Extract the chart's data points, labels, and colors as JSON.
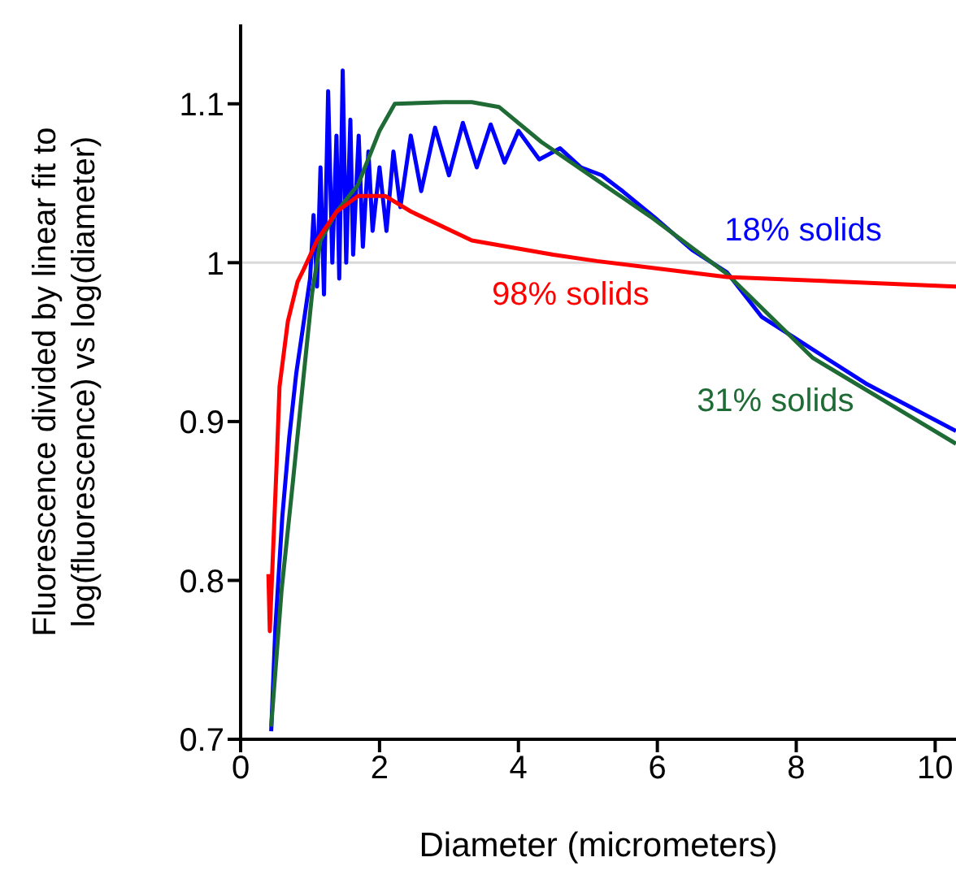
{
  "chart_data": {
    "type": "line",
    "xlabel": "Diameter (micrometers)",
    "ylabel": "Fluorescence divided by linear fit to\nlog(fluorescence) vs log(diameter)",
    "xlim": [
      0,
      10.3
    ],
    "xticks": [
      0,
      2,
      4,
      6,
      8,
      10
    ],
    "ylim": [
      0.7,
      1.15
    ],
    "yticks": [
      0.7,
      0.8,
      0.9,
      1,
      1.1
    ],
    "marker": "none",
    "line_style": "solid",
    "ref_lines": [
      {
        "axis": "y",
        "value": 1,
        "color": "#d9d9d9"
      }
    ],
    "series": [
      {
        "name": "18% solids",
        "color": "#0000ff",
        "x": [
          0.44,
          0.5,
          0.6,
          0.7,
          0.8,
          0.9,
          1.0,
          1.05,
          1.1,
          1.15,
          1.2,
          1.26,
          1.32,
          1.38,
          1.42,
          1.47,
          1.52,
          1.58,
          1.62,
          1.7,
          1.76,
          1.84,
          1.9,
          2.0,
          2.1,
          2.2,
          2.3,
          2.45,
          2.6,
          2.8,
          3.0,
          3.2,
          3.4,
          3.6,
          3.8,
          4.0,
          4.3,
          4.6,
          4.9,
          5.2,
          5.5,
          6.0,
          6.5,
          7.0,
          7.5,
          8.0,
          9.0,
          10.3
        ],
        "values": [
          0.705,
          0.77,
          0.84,
          0.89,
          0.93,
          0.96,
          0.99,
          1.03,
          0.985,
          1.06,
          0.98,
          1.108,
          1.0,
          1.08,
          0.99,
          1.121,
          1.0,
          1.09,
          1.005,
          1.08,
          1.01,
          1.07,
          1.02,
          1.06,
          1.02,
          1.07,
          1.035,
          1.08,
          1.045,
          1.085,
          1.055,
          1.088,
          1.06,
          1.087,
          1.063,
          1.083,
          1.065,
          1.072,
          1.06,
          1.055,
          1.045,
          1.027,
          1.008,
          0.994,
          0.966,
          0.952,
          0.924,
          0.894
        ]
      },
      {
        "name": "31% solids",
        "color": "#1e6b35",
        "x": [
          0.44,
          0.59,
          0.75,
          0.91,
          1.03,
          1.15,
          1.38,
          1.69,
          2.0,
          2.22,
          2.93,
          3.33,
          3.72,
          4.33,
          5.13,
          5.9,
          7.0,
          8.24,
          10.3
        ],
        "values": [
          0.708,
          0.794,
          0.861,
          0.93,
          0.981,
          1.014,
          1.032,
          1.049,
          1.083,
          1.1,
          1.101,
          1.101,
          1.098,
          1.076,
          1.052,
          1.029,
          0.993,
          0.94,
          0.886
        ]
      },
      {
        "name": "98% solids",
        "color": "#ff0000",
        "x": [
          0.4,
          0.42,
          0.52,
          0.56,
          0.68,
          0.82,
          0.91,
          1.1,
          1.38,
          1.69,
          2.08,
          2.46,
          3.33,
          4.5,
          5.13,
          7.0,
          10.3
        ],
        "values": [
          0.804,
          0.768,
          0.875,
          0.922,
          0.963,
          0.988,
          0.996,
          1.014,
          1.032,
          1.042,
          1.042,
          1.032,
          1.014,
          1.005,
          1.001,
          0.991,
          0.985
        ]
      }
    ]
  }
}
